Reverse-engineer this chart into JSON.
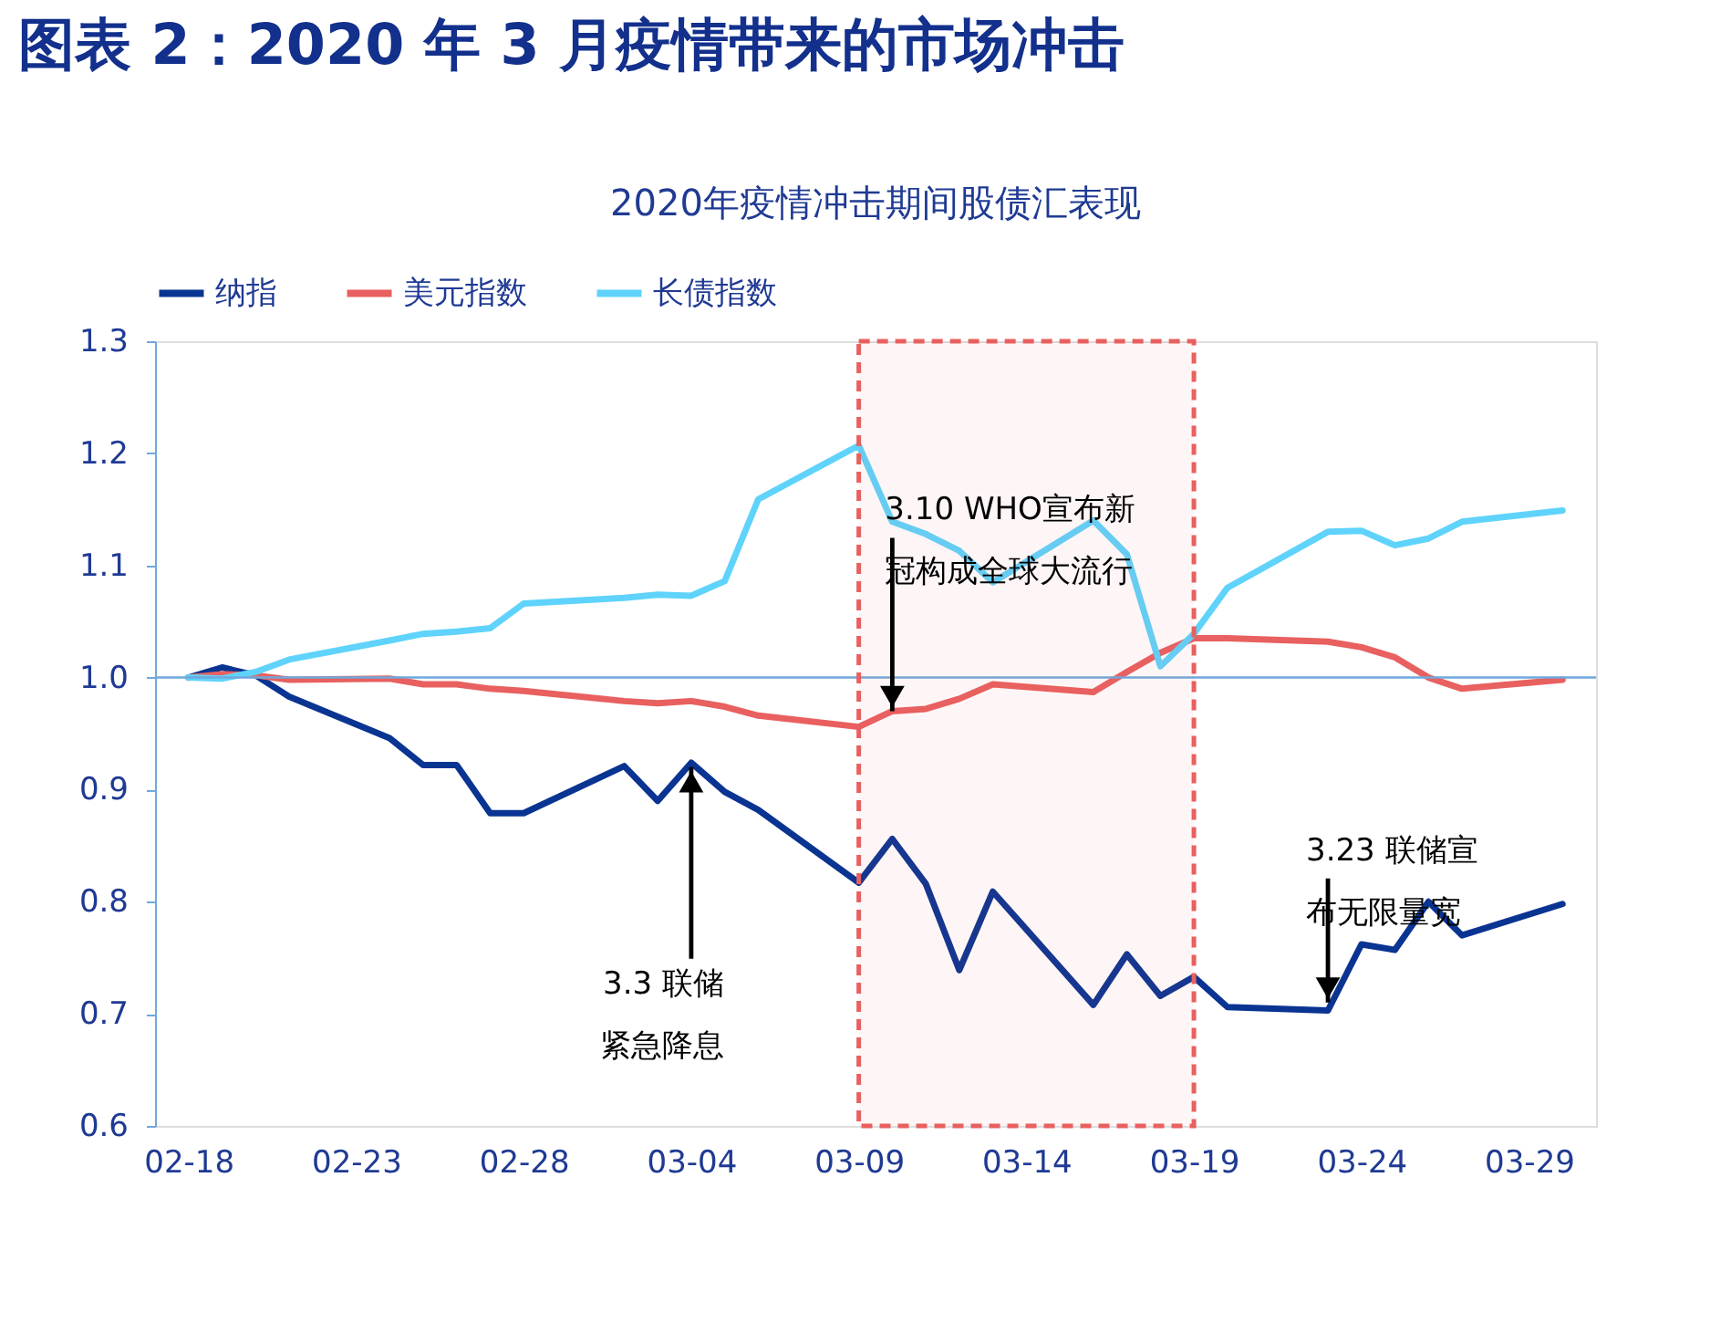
{
  "chart_data": {
    "type": "line",
    "title": "图表 2：2020 年 3 月疫情带来的市场冲击",
    "subtitle": "2020年疫情冲击期间股债汇表现",
    "x": [
      "2020-02-18",
      "2020-02-19",
      "2020-02-20",
      "2020-02-21",
      "2020-02-24",
      "2020-02-25",
      "2020-02-26",
      "2020-02-27",
      "2020-02-28",
      "2020-03-02",
      "2020-03-03",
      "2020-03-04",
      "2020-03-05",
      "2020-03-06",
      "2020-03-09",
      "2020-03-10",
      "2020-03-11",
      "2020-03-12",
      "2020-03-13",
      "2020-03-16",
      "2020-03-17",
      "2020-03-18",
      "2020-03-19",
      "2020-03-20",
      "2020-03-23",
      "2020-03-24",
      "2020-03-25",
      "2020-03-26",
      "2020-03-27",
      "2020-03-30"
    ],
    "series": [
      {
        "name": "纳指",
        "color": "#0a3492",
        "values": [
          1.0,
          1.009,
          1.002,
          0.983,
          0.946,
          0.922,
          0.922,
          0.879,
          0.879,
          0.921,
          0.89,
          0.924,
          0.898,
          0.882,
          0.817,
          0.856,
          0.816,
          0.739,
          0.809,
          0.708,
          0.753,
          0.716,
          0.733,
          0.706,
          0.703,
          0.762,
          0.757,
          0.8,
          0.77,
          0.798
        ]
      },
      {
        "name": "美元指数",
        "color": "#e8605f",
        "values": [
          1.0,
          1.003,
          1.002,
          0.998,
          0.999,
          0.994,
          0.994,
          0.99,
          0.988,
          0.979,
          0.977,
          0.979,
          0.974,
          0.966,
          0.956,
          0.97,
          0.972,
          0.981,
          0.994,
          0.987,
          1.005,
          1.022,
          1.035,
          1.035,
          1.032,
          1.027,
          1.018,
          1.0,
          0.99,
          0.998
        ]
      },
      {
        "name": "长债指数",
        "color": "#5fd3fb",
        "values": [
          1.0,
          0.999,
          1.005,
          1.016,
          1.033,
          1.039,
          1.041,
          1.044,
          1.066,
          1.071,
          1.074,
          1.073,
          1.086,
          1.159,
          1.207,
          1.139,
          1.128,
          1.113,
          1.085,
          1.14,
          1.11,
          1.01,
          1.039,
          1.08,
          1.13,
          1.131,
          1.118,
          1.124,
          1.139,
          1.149
        ]
      }
    ],
    "xlim": [
      "2020-02-17",
      "2020-03-31"
    ],
    "xticks": [
      {
        "value": "2020-02-18",
        "label": "02-18"
      },
      {
        "value": "2020-02-23",
        "label": "02-23"
      },
      {
        "value": "2020-02-28",
        "label": "02-28"
      },
      {
        "value": "2020-03-04",
        "label": "03-04"
      },
      {
        "value": "2020-03-09",
        "label": "03-09"
      },
      {
        "value": "2020-03-14",
        "label": "03-14"
      },
      {
        "value": "2020-03-19",
        "label": "03-19"
      },
      {
        "value": "2020-03-24",
        "label": "03-24"
      },
      {
        "value": "2020-03-29",
        "label": "03-29"
      }
    ],
    "ylim": [
      0.6,
      1.3
    ],
    "yticks": [
      0.6,
      0.7,
      0.8,
      0.9,
      {
        "value": 1,
        "label": "1.0"
      },
      1.1,
      1.2,
      1.3
    ],
    "ref_lines": [
      {
        "axis": "y",
        "value": 1.0,
        "color": "#6fa8dc"
      }
    ],
    "bands": [
      {
        "axis": "x",
        "from": "2020-03-09",
        "to": "2020-03-19",
        "color": "#e8605f"
      }
    ],
    "annotations": [
      {
        "text": "3.10 WHO宣布新冠构成全球大流行",
        "x": "2020-03-10",
        "y": 0.97
      },
      {
        "text": "3.3 联储紧急降息",
        "x": "2020-03-04",
        "y": 0.92
      },
      {
        "text": "3.23 联储宣布无限量宽",
        "x": "2020-03-23",
        "y": 0.71
      }
    ],
    "legend": "top",
    "grid": false
  }
}
